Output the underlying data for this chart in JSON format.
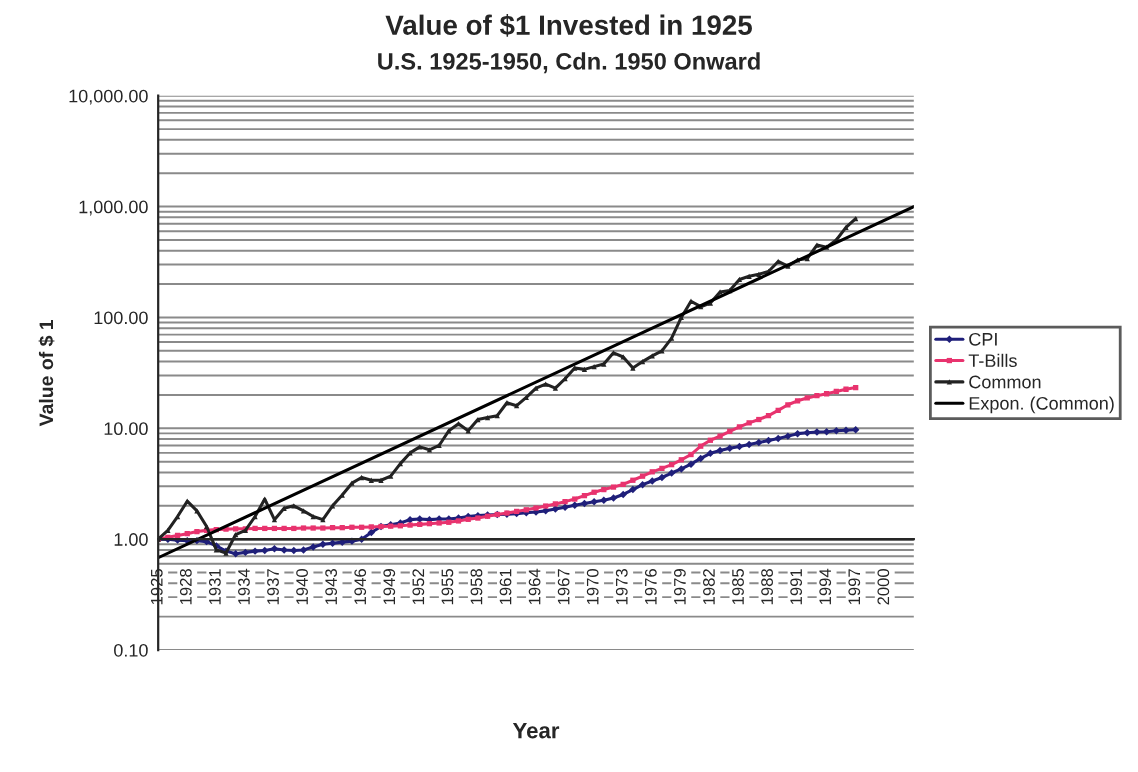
{
  "chart_data": {
    "type": "line",
    "title": "Value of $1 Invested in 1925",
    "subtitle": "U.S. 1925-1950, Cdn. 1950 Onward",
    "xlabel": "Year",
    "ylabel": "Value of $ 1",
    "x": [
      1925,
      1926,
      1927,
      1928,
      1929,
      1930,
      1931,
      1932,
      1933,
      1934,
      1935,
      1936,
      1937,
      1938,
      1939,
      1940,
      1941,
      1942,
      1943,
      1944,
      1945,
      1946,
      1947,
      1948,
      1949,
      1950,
      1951,
      1952,
      1953,
      1954,
      1955,
      1956,
      1957,
      1958,
      1959,
      1960,
      1961,
      1962,
      1963,
      1964,
      1965,
      1966,
      1967,
      1968,
      1969,
      1970,
      1971,
      1972,
      1973,
      1974,
      1975,
      1976,
      1977,
      1978,
      1979,
      1980,
      1981,
      1982,
      1983,
      1984,
      1985,
      1986,
      1987,
      1988,
      1989,
      1990,
      1991,
      1992,
      1993,
      1994,
      1995,
      1996,
      1997
    ],
    "series": [
      {
        "name": "CPI",
        "color": "#1f1f7a",
        "marker": "diamond",
        "values": [
          1.0,
          1.0,
          0.98,
          0.97,
          0.97,
          0.95,
          0.87,
          0.78,
          0.74,
          0.76,
          0.78,
          0.79,
          0.82,
          0.8,
          0.79,
          0.8,
          0.85,
          0.9,
          0.92,
          0.94,
          0.96,
          1.0,
          1.15,
          1.3,
          1.35,
          1.4,
          1.5,
          1.52,
          1.5,
          1.52,
          1.52,
          1.55,
          1.6,
          1.63,
          1.65,
          1.67,
          1.68,
          1.7,
          1.73,
          1.76,
          1.8,
          1.87,
          1.94,
          2.02,
          2.1,
          2.18,
          2.24,
          2.35,
          2.53,
          2.8,
          3.1,
          3.35,
          3.6,
          3.95,
          4.3,
          4.75,
          5.35,
          5.95,
          6.3,
          6.6,
          6.85,
          7.15,
          7.45,
          7.75,
          8.1,
          8.5,
          8.95,
          9.1,
          9.25,
          9.3,
          9.5,
          9.6,
          9.7
        ]
      },
      {
        "name": "T-Bills",
        "color": "#e8336e",
        "marker": "square",
        "values": [
          1.0,
          1.04,
          1.08,
          1.12,
          1.17,
          1.2,
          1.22,
          1.23,
          1.24,
          1.24,
          1.25,
          1.25,
          1.25,
          1.25,
          1.25,
          1.26,
          1.26,
          1.26,
          1.27,
          1.27,
          1.28,
          1.28,
          1.29,
          1.3,
          1.31,
          1.32,
          1.34,
          1.36,
          1.38,
          1.4,
          1.42,
          1.46,
          1.51,
          1.55,
          1.61,
          1.67,
          1.72,
          1.78,
          1.84,
          1.91,
          1.99,
          2.08,
          2.18,
          2.3,
          2.47,
          2.65,
          2.8,
          2.95,
          3.12,
          3.4,
          3.7,
          4.05,
          4.35,
          4.7,
          5.2,
          5.8,
          6.9,
          7.8,
          8.5,
          9.4,
          10.3,
          11.2,
          12.0,
          13.0,
          14.5,
          16.3,
          17.7,
          18.8,
          19.7,
          20.5,
          21.5,
          22.5,
          23.3
        ]
      },
      {
        "name": "Common",
        "color": "#222222",
        "marker": "triangle",
        "values": [
          1.0,
          1.2,
          1.6,
          2.2,
          1.8,
          1.3,
          0.8,
          0.75,
          1.1,
          1.2,
          1.6,
          2.3,
          1.5,
          1.9,
          2.0,
          1.8,
          1.6,
          1.5,
          2.0,
          2.5,
          3.2,
          3.6,
          3.4,
          3.4,
          3.7,
          4.8,
          6.0,
          6.8,
          6.4,
          7.0,
          9.5,
          11,
          9.5,
          12,
          12.5,
          13,
          17,
          16,
          19,
          23,
          25,
          23,
          28,
          35,
          34,
          36,
          38,
          48,
          44,
          35,
          40,
          45,
          50,
          65,
          100,
          140,
          125,
          135,
          170,
          175,
          220,
          235,
          245,
          260,
          320,
          290,
          330,
          340,
          450,
          430,
          500,
          650,
          780
        ]
      },
      {
        "name": "Expon. (Common)",
        "color": "#000000",
        "marker": "none",
        "x": [
          1925,
          2003
        ],
        "values": [
          0.68,
          1000
        ]
      }
    ],
    "log": "y",
    "xlim": [
      1925,
      2003
    ],
    "ylim": [
      0.1,
      10000
    ],
    "xticks": [
      1925,
      1928,
      1931,
      1934,
      1937,
      1940,
      1943,
      1946,
      1949,
      1952,
      1955,
      1958,
      1961,
      1964,
      1967,
      1970,
      1973,
      1976,
      1979,
      1982,
      1985,
      1988,
      1991,
      1994,
      1997,
      2000
    ],
    "yticks": [
      {
        "value": 0.1,
        "label": "0.10"
      },
      {
        "value": 0.2,
        "label": null
      },
      {
        "value": 0.3,
        "label": null
      },
      {
        "value": 0.4,
        "label": null
      },
      {
        "value": 0.5,
        "label": null
      },
      {
        "value": 0.6,
        "label": null
      },
      {
        "value": 0.7,
        "label": null
      },
      {
        "value": 0.8,
        "label": null
      },
      {
        "value": 0.9,
        "label": null
      },
      {
        "value": 1,
        "label": "1.00"
      },
      {
        "value": 2,
        "label": null
      },
      {
        "value": 3,
        "label": null
      },
      {
        "value": 4,
        "label": null
      },
      {
        "value": 5,
        "label": null
      },
      {
        "value": 6,
        "label": null
      },
      {
        "value": 7,
        "label": null
      },
      {
        "value": 8,
        "label": null
      },
      {
        "value": 9,
        "label": null
      },
      {
        "value": 10,
        "label": "10.00"
      },
      {
        "value": 20,
        "label": null
      },
      {
        "value": 30,
        "label": null
      },
      {
        "value": 40,
        "label": null
      },
      {
        "value": 50,
        "label": null
      },
      {
        "value": 60,
        "label": null
      },
      {
        "value": 70,
        "label": null
      },
      {
        "value": 80,
        "label": null
      },
      {
        "value": 90,
        "label": null
      },
      {
        "value": 100,
        "label": "100.00"
      },
      {
        "value": 200,
        "label": null
      },
      {
        "value": 300,
        "label": null
      },
      {
        "value": 400,
        "label": null
      },
      {
        "value": 500,
        "label": null
      },
      {
        "value": 600,
        "label": null
      },
      {
        "value": 700,
        "label": null
      },
      {
        "value": 800,
        "label": null
      },
      {
        "value": 900,
        "label": null
      },
      {
        "value": 1000,
        "label": "1,000.00"
      },
      {
        "value": 2000,
        "label": null
      },
      {
        "value": 3000,
        "label": null
      },
      {
        "value": 4000,
        "label": null
      },
      {
        "value": 5000,
        "label": null
      },
      {
        "value": 6000,
        "label": null
      },
      {
        "value": 7000,
        "label": null
      },
      {
        "value": 8000,
        "label": null
      },
      {
        "value": 9000,
        "label": null
      },
      {
        "value": 10000,
        "label": "10,000.00"
      }
    ],
    "ref_lines": [
      {
        "axis": "y",
        "value": 1,
        "color": "#262626"
      }
    ],
    "grid": "y",
    "legend": "right"
  }
}
